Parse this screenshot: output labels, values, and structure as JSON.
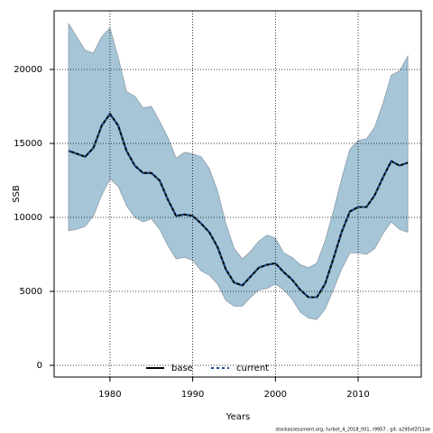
{
  "chart_data": {
    "type": "line",
    "xlabel": "Years",
    "ylabel": "SSB",
    "footnote": "stockassessment.org, turbot_4_2018_001, r9957 , git: a295ef2f11ae",
    "x": [
      1975,
      1976,
      1977,
      1978,
      1979,
      1980,
      1981,
      1982,
      1983,
      1984,
      1985,
      1986,
      1987,
      1988,
      1989,
      1990,
      1991,
      1992,
      1993,
      1994,
      1995,
      1996,
      1997,
      1998,
      1999,
      2000,
      2001,
      2002,
      2003,
      2004,
      2005,
      2006,
      2007,
      2008,
      2009,
      2010,
      2011,
      2012,
      2013,
      2014,
      2015,
      2016
    ],
    "band": {
      "color": "#a6c6d8",
      "edge": "#8a9aa6",
      "upper": [
        23100,
        22200,
        21300,
        21100,
        22200,
        22800,
        20800,
        18500,
        18200,
        17400,
        17500,
        16500,
        15400,
        14000,
        14400,
        14300,
        14100,
        13300,
        11800,
        9600,
        7900,
        7200,
        7700,
        8400,
        8800,
        8600,
        7600,
        7300,
        6800,
        6600,
        6900,
        8400,
        10400,
        12600,
        14600,
        15200,
        15300,
        16100,
        17700,
        19600,
        19900,
        20900
      ],
      "lower": [
        9100,
        9200,
        9400,
        10100,
        11500,
        12600,
        12100,
        10800,
        10000,
        9700,
        9900,
        9200,
        8100,
        7200,
        7300,
        7100,
        6400,
        6100,
        5500,
        4400,
        4000,
        4000,
        4600,
        5100,
        5200,
        5500,
        5100,
        4500,
        3600,
        3200,
        3100,
        3800,
        5100,
        6500,
        7600,
        7600,
        7500,
        7900,
        8900,
        9700,
        9200,
        9000
      ]
    },
    "series": [
      {
        "name": "base",
        "color": "#000000",
        "dash": false,
        "values": [
          14500,
          14300,
          14100,
          14700,
          16200,
          17000,
          16200,
          14500,
          13500,
          13000,
          13000,
          12500,
          11200,
          10100,
          10200,
          10100,
          9600,
          9000,
          8000,
          6500,
          5600,
          5400,
          6000,
          6600,
          6800,
          6900,
          6300,
          5800,
          5100,
          4600,
          4600,
          5500,
          7200,
          9000,
          10400,
          10700,
          10700,
          11500,
          12700,
          13800,
          13500,
          13700
        ]
      },
      {
        "name": "current",
        "color": "#1f4e8c",
        "dash": true,
        "values": [
          14500,
          14300,
          14100,
          14700,
          16200,
          17000,
          16200,
          14500,
          13500,
          13000,
          13000,
          12500,
          11200,
          10100,
          10200,
          10100,
          9600,
          9000,
          8000,
          6500,
          5600,
          5400,
          6000,
          6600,
          6800,
          6900,
          6300,
          5800,
          5100,
          4600,
          4600,
          5500,
          7200,
          9000,
          10400,
          10700,
          10700,
          11500,
          12700,
          13800,
          13500,
          13700
        ]
      }
    ],
    "xlim": [
      1973.25,
      2017.63
    ],
    "ylim": [
      -793,
      23963
    ],
    "xticks": [
      1980,
      1990,
      2000,
      2010
    ],
    "yticks": [
      0,
      5000,
      10000,
      15000,
      20000
    ],
    "grid": true,
    "legend": "bottom"
  }
}
